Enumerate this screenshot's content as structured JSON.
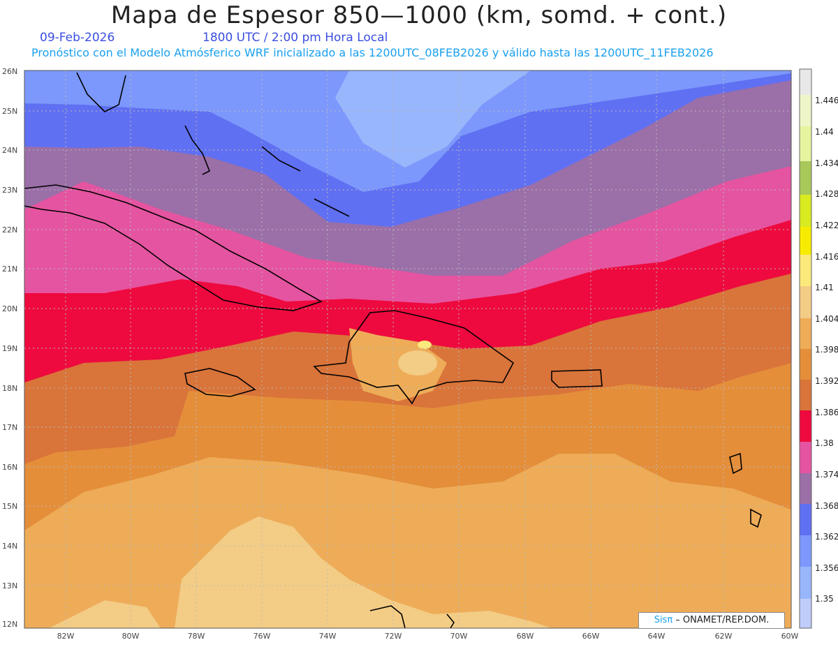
{
  "header": {
    "title": "Mapa de Espesor 850—1000 (km, somd. + cont.)",
    "date": "09-Feb-2026",
    "time": "1800 UTC / 2:00 pm Hora Local",
    "forecast": "Pronóstico con el Modelo Atmósferico WRF inicializado a las 1200UTC_08FEB2026 y válido hasta las  1200UTC_11FEB2026"
  },
  "axes": {
    "y_labels": [
      "26N",
      "25N",
      "24N",
      "23N",
      "22N",
      "21N",
      "20N",
      "19N",
      "18N",
      "17N",
      "16N",
      "15N",
      "14N",
      "13N",
      "12N"
    ],
    "x_labels": [
      "82W",
      "80W",
      "78W",
      "76W",
      "74W",
      "72W",
      "70W",
      "68W",
      "66W",
      "64W",
      "62W",
      "60W"
    ]
  },
  "colorbar": {
    "labels": [
      "1.446",
      "1.44",
      "1.434",
      "1.428",
      "1.422",
      "1.416",
      "1.41",
      "1.404",
      "1.398",
      "1.392",
      "1.386",
      "1.38",
      "1.374",
      "1.368",
      "1.362",
      "1.356",
      "1.35"
    ],
    "colors": [
      "#e8e8e8",
      "#eef6c8",
      "#e6f4a0",
      "#a8c85a",
      "#d8ea20",
      "#f7ec00",
      "#fbe97c",
      "#f3cc86",
      "#eeac58",
      "#e48e3a",
      "#d9743a",
      "#ee0a3e",
      "#e554a0",
      "#9b6fa8",
      "#6070f2",
      "#7c98fc",
      "#98b6fc",
      "#c0ccfa"
    ]
  },
  "credit": {
    "logo": "Sisπ",
    "text": " – ONAMET/REP.DOM."
  }
}
